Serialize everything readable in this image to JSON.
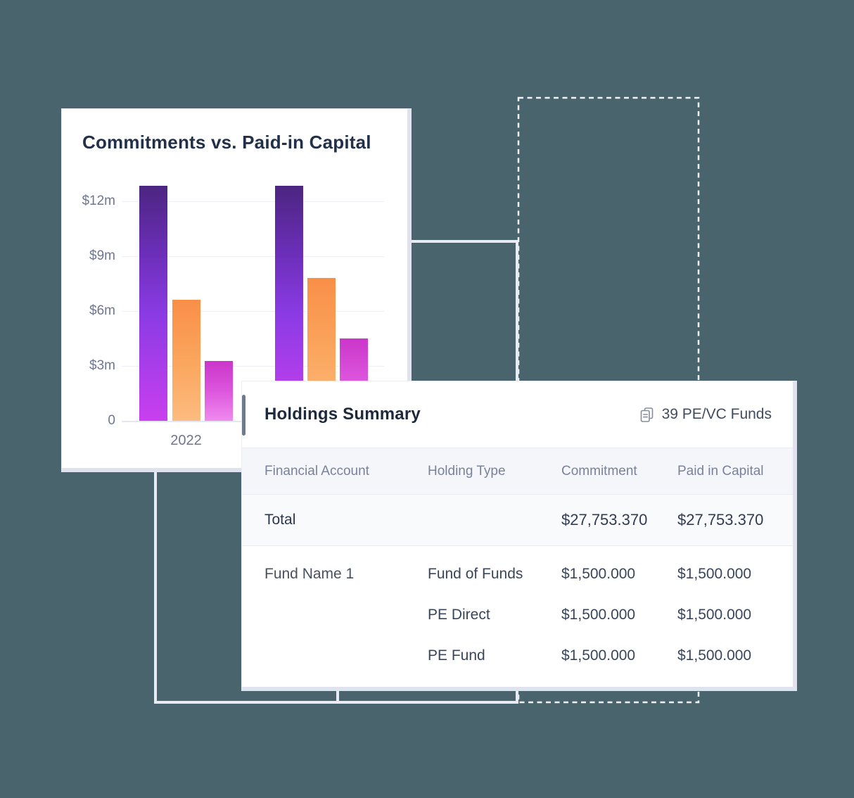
{
  "colors": {
    "background": "#49646C",
    "card_background": "#FFFFFF",
    "card_offset_edge": "#DFE3F0",
    "outline_solid": "#E9EBF4",
    "outline_dashed": "#F1F3F7",
    "chart_title_text": "#22304A",
    "axis_text": "#6F7690",
    "column_header_text": "#7A819B",
    "body_text": "#39455A",
    "bar_purple_gradient": [
      "#4C2581",
      "#8B3BE4",
      "#C93FEF"
    ],
    "bar_orange_gradient": [
      "#F98F47",
      "#FCBC80"
    ],
    "bar_pink_gradient": [
      "#CA36CA",
      "#F08AEE"
    ],
    "left_indicator": "#717A8D"
  },
  "chart_data": {
    "type": "bar",
    "title": "Commitments vs. Paid-in Capital",
    "categories": [
      "2022",
      ""
    ],
    "series": [
      {
        "name": "purple",
        "values": [
          12.85,
          12.85
        ]
      },
      {
        "name": "orange",
        "values": [
          6.6,
          7.8
        ]
      },
      {
        "name": "pink",
        "values": [
          3.25,
          4.5
        ]
      }
    ],
    "y_ticks": [
      {
        "label": "$12m",
        "value": 12
      },
      {
        "label": "$9m",
        "value": 9
      },
      {
        "label": "$6m",
        "value": 6
      },
      {
        "label": "$3m",
        "value": 3
      },
      {
        "label": "0",
        "value": 0
      }
    ],
    "ylim": [
      0,
      13.3
    ],
    "grid": true,
    "legend": false
  },
  "holdings": {
    "title": "Holdings Summary",
    "badge": {
      "icon": "documents-icon",
      "label": "39 PE/VC Funds"
    },
    "table": {
      "columns": [
        "Financial Account",
        "Holding Type",
        "Commitment",
        "Paid in Capital"
      ],
      "total": {
        "label": "Total",
        "commitment": "$27,753.370",
        "paid_in_capital": "$27,753.370"
      },
      "rows": [
        {
          "financial_account": "Fund Name 1",
          "holding_type": "Fund of Funds",
          "commitment": "$1,500.000",
          "paid_in_capital": "$1,500.000"
        },
        {
          "financial_account": "",
          "holding_type": "PE Direct",
          "commitment": "$1,500.000",
          "paid_in_capital": "$1,500.000"
        },
        {
          "financial_account": "",
          "holding_type": "PE Fund",
          "commitment": "$1,500.000",
          "paid_in_capital": "$1,500.000"
        }
      ]
    }
  }
}
